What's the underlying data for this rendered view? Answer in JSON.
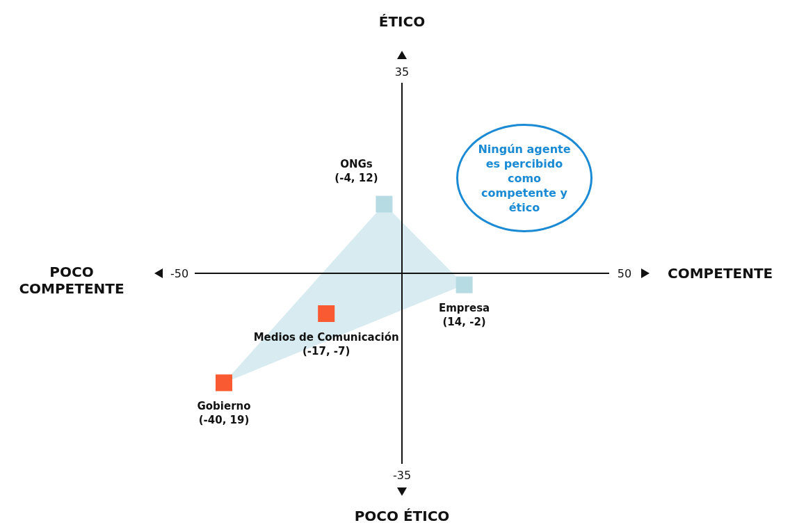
{
  "chart_data": {
    "type": "scatter",
    "xlabel": "COMPETENTE",
    "ylabel": "ÉTICO",
    "xlim": [
      -50,
      50
    ],
    "ylim": [
      -35,
      35
    ],
    "xticks": [
      -50,
      50
    ],
    "yticks": [
      -35,
      35
    ],
    "marker": "square",
    "grid": false,
    "annotations": [
      "POCO COMPETENTE",
      "POCO ÉTICO",
      "Ningún agente es percibido como competente y ético"
    ],
    "series": [
      {
        "name": "ONGs",
        "color": "#b6dbe3",
        "x": [
          -4
        ],
        "values": [
          12
        ],
        "value_labels": [
          "(-4, 12)"
        ]
      },
      {
        "name": "Empresa",
        "color": "#b6dbe3",
        "x": [
          14
        ],
        "values": [
          -2
        ],
        "value_labels": [
          "(14, -2)"
        ]
      },
      {
        "name": "Medios de Comunicación",
        "color": "#fa5a32",
        "x": [
          -17
        ],
        "values": [
          -7
        ],
        "value_labels": [
          "(-17, -7)"
        ]
      },
      {
        "name": "Gobierno",
        "color": "#fa5a32",
        "x": [
          -40
        ],
        "values": [
          -19
        ],
        "value_labels": [
          "(-40, 19)"
        ]
      }
    ]
  }
}
